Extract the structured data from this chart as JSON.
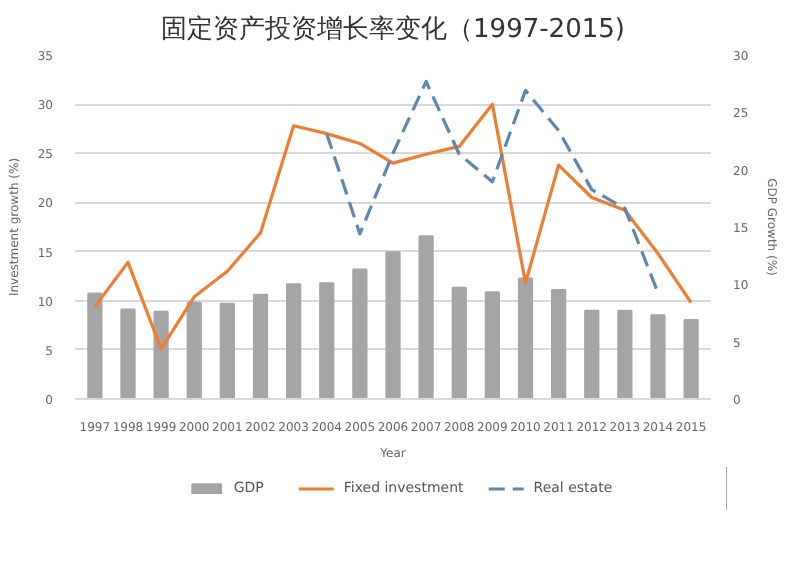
{
  "chart_data": {
    "type": "bar",
    "title": "固定资产投资增长率变化（1997-2015)",
    "xlabel": "Year",
    "ylabel": "Investment growth (%)",
    "y2label": "GDP Growth (%)",
    "categories": [
      "1997",
      "1998",
      "1999",
      "2000",
      "2001",
      "2002",
      "2003",
      "2004",
      "2005",
      "2006",
      "2007",
      "2008",
      "2009",
      "2010",
      "2011",
      "2012",
      "2013",
      "2014",
      "2015"
    ],
    "series": [
      {
        "name": "GDP",
        "axis": "y2",
        "color": "#a5a5a5",
        "values": [
          9.2,
          7.8,
          7.6,
          8.4,
          8.3,
          9.1,
          10.0,
          10.1,
          11.3,
          12.8,
          14.2,
          9.7,
          9.3,
          10.5,
          9.5,
          7.7,
          7.7,
          7.3,
          6.9
        ]
      },
      {
        "name": "Fixed investment",
        "type": "line",
        "color": "#ed7d31",
        "line_style": "solid",
        "values": [
          9.4,
          13.9,
          5.1,
          10.4,
          13.0,
          16.9,
          27.8,
          27.0,
          26.0,
          24.0,
          24.9,
          25.7,
          30.0,
          11.8,
          23.8,
          20.5,
          19.2,
          14.8,
          9.8
        ]
      },
      {
        "name": "Real estate",
        "type": "line",
        "color": "#5b87b0",
        "line_style": "dashed",
        "values": [
          null,
          null,
          null,
          null,
          null,
          null,
          null,
          27.0,
          16.8,
          25.0,
          32.3,
          24.9,
          22.1,
          31.4,
          27.3,
          21.3,
          19.4,
          10.8,
          null
        ]
      }
    ],
    "ylim": [
      0,
      35
    ],
    "yticks": [
      0,
      5,
      10,
      15,
      20,
      25,
      30,
      35
    ],
    "y2lim": [
      0,
      30
    ],
    "y2ticks": [
      0,
      5,
      10,
      15,
      20,
      25,
      30
    ],
    "grid": "y",
    "legend": "bottom"
  }
}
